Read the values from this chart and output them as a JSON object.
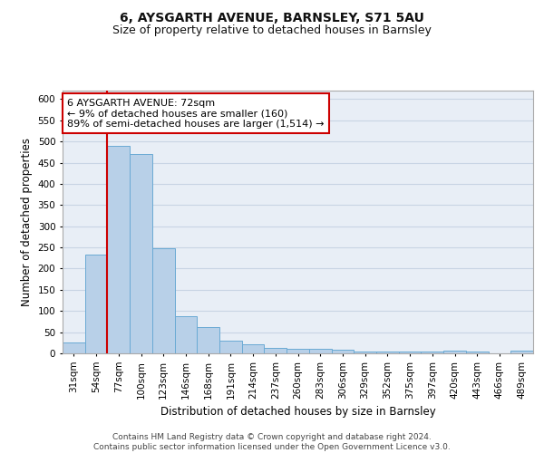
{
  "title_line1": "6, AYSGARTH AVENUE, BARNSLEY, S71 5AU",
  "title_line2": "Size of property relative to detached houses in Barnsley",
  "xlabel": "Distribution of detached houses by size in Barnsley",
  "ylabel": "Number of detached properties",
  "categories": [
    "31sqm",
    "54sqm",
    "77sqm",
    "100sqm",
    "123sqm",
    "146sqm",
    "168sqm",
    "191sqm",
    "214sqm",
    "237sqm",
    "260sqm",
    "283sqm",
    "306sqm",
    "329sqm",
    "352sqm",
    "375sqm",
    "397sqm",
    "420sqm",
    "443sqm",
    "466sqm",
    "489sqm"
  ],
  "values": [
    25,
    232,
    490,
    470,
    248,
    87,
    62,
    30,
    22,
    13,
    11,
    10,
    8,
    5,
    4,
    4,
    4,
    7,
    4,
    1,
    6
  ],
  "bar_color": "#b8d0e8",
  "bar_edge_color": "#6aaad4",
  "grid_color": "#c8d4e4",
  "background_color": "#e8eef6",
  "vline_x_idx": 2,
  "vline_color": "#cc0000",
  "annotation_text": "6 AYSGARTH AVENUE: 72sqm\n← 9% of detached houses are smaller (160)\n89% of semi-detached houses are larger (1,514) →",
  "annotation_box_color": "#cc0000",
  "ylim": [
    0,
    620
  ],
  "yticks": [
    0,
    50,
    100,
    150,
    200,
    250,
    300,
    350,
    400,
    450,
    500,
    550,
    600
  ],
  "footer": "Contains HM Land Registry data © Crown copyright and database right 2024.\nContains public sector information licensed under the Open Government Licence v3.0.",
  "title_fontsize": 10,
  "subtitle_fontsize": 9,
  "axis_label_fontsize": 8.5,
  "tick_fontsize": 7.5,
  "footer_fontsize": 6.5,
  "annotation_fontsize": 8
}
